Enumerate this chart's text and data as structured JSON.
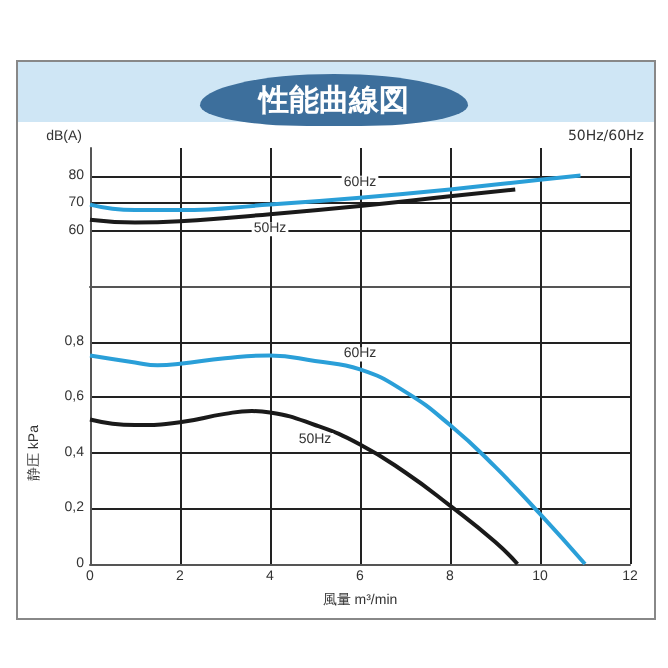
{
  "chart_data": [
    {
      "type": "line",
      "title": "性能曲線図",
      "annotations": [
        "50Hz/60Hz"
      ],
      "ylabel": "dB(A)",
      "xlim": [
        0,
        12
      ],
      "xticks": [
        0,
        2,
        4,
        6,
        8,
        10,
        12
      ],
      "ylim": [
        40,
        90
      ],
      "yticks": [
        60,
        70,
        80
      ],
      "tick_labels": "y",
      "grid": true,
      "legend": false,
      "marker": "none",
      "series": [
        {
          "name": "60Hz",
          "color": "#2a9fd8",
          "x": [
            0,
            1,
            2,
            4,
            6,
            8,
            10,
            10.9
          ],
          "values": [
            69.5,
            67.5,
            67.5,
            69.5,
            72,
            75,
            78.5,
            80
          ]
        },
        {
          "name": "50Hz",
          "color": "#1a1a1a",
          "x": [
            0,
            1,
            2,
            4,
            6,
            8,
            9.45
          ],
          "values": [
            64,
            63,
            63.5,
            66,
            69,
            72.5,
            75
          ]
        }
      ]
    },
    {
      "type": "line",
      "xlabel": "風量 m³/min",
      "ylabel": "静圧 kPa",
      "xlim": [
        0,
        12
      ],
      "xticks": [
        0,
        2,
        4,
        6,
        8,
        10,
        12
      ],
      "ylim": [
        0,
        1
      ],
      "yticks": [
        0,
        {
          "value": 0.2,
          "label": "0,2"
        },
        {
          "value": 0.4,
          "label": "0,4"
        },
        {
          "value": 0.6,
          "label": "0,6"
        },
        {
          "value": 0.8,
          "label": "0,8"
        }
      ],
      "grid": true,
      "legend": false,
      "marker": "none",
      "series": [
        {
          "name": "60Hz",
          "color": "#2a9fd8",
          "x": [
            0,
            1,
            1.5,
            2,
            3,
            4,
            5,
            6,
            7,
            8,
            9,
            10,
            11
          ],
          "values": [
            0.75,
            0.725,
            0.715,
            0.72,
            0.74,
            0.75,
            0.73,
            0.7,
            0.62,
            0.5,
            0.35,
            0.18,
            0
          ]
        },
        {
          "name": "50Hz",
          "color": "#1a1a1a",
          "x": [
            0,
            1,
            2,
            3,
            3.6,
            4,
            5,
            6,
            7,
            8,
            9,
            9.5
          ],
          "values": [
            0.52,
            0.5,
            0.51,
            0.54,
            0.55,
            0.545,
            0.5,
            0.43,
            0.33,
            0.21,
            0.08,
            0
          ]
        }
      ]
    }
  ]
}
